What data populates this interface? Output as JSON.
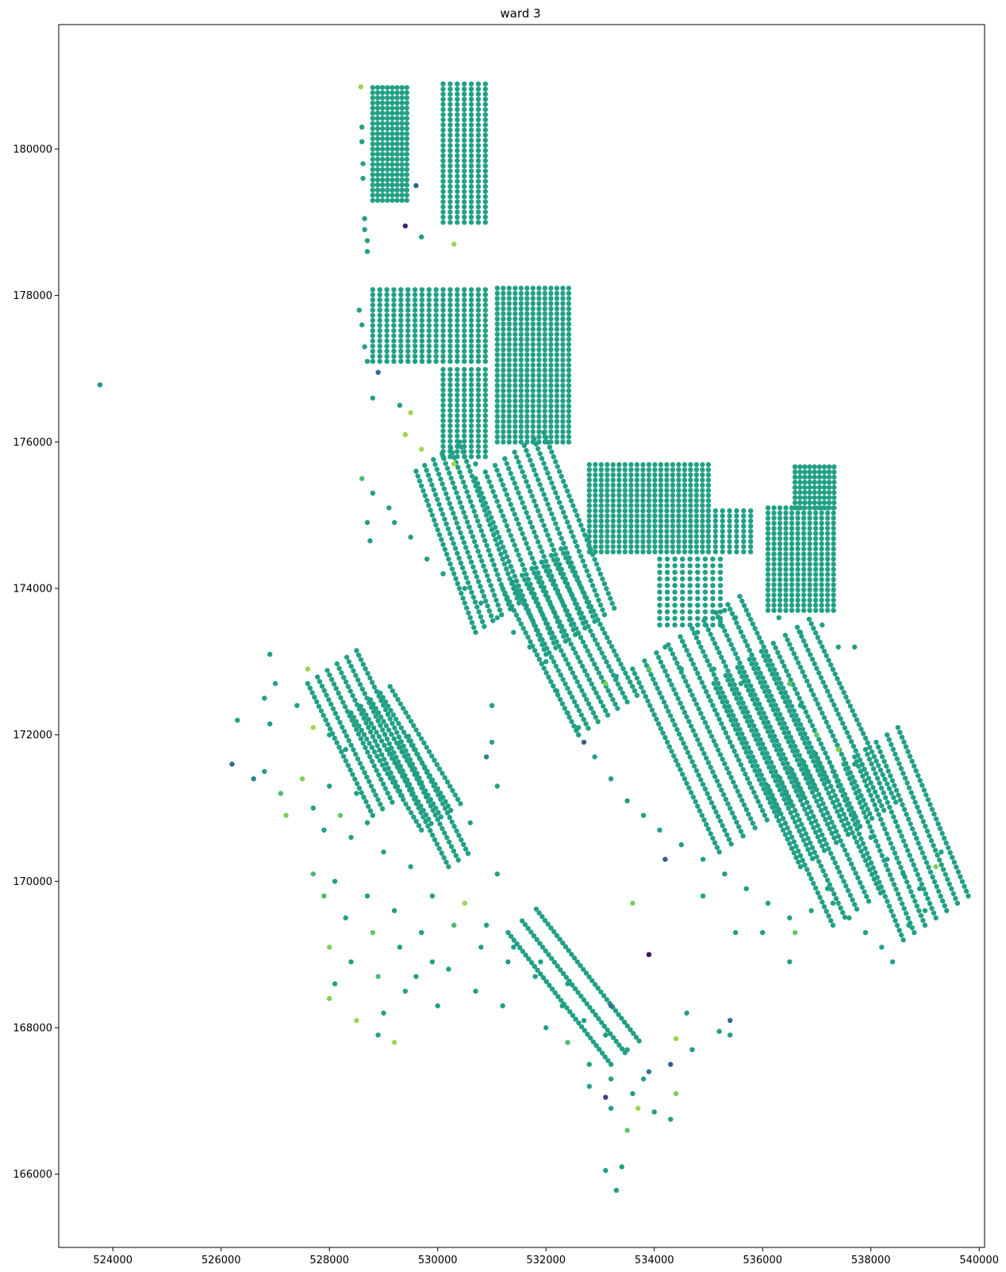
{
  "chart_data": {
    "type": "scatter",
    "title": "ward 3",
    "xlabel": "",
    "ylabel": "",
    "xlim": [
      523000,
      540100
    ],
    "ylim": [
      165000,
      181700
    ],
    "xticks": [
      524000,
      526000,
      528000,
      530000,
      532000,
      534000,
      536000,
      538000,
      540000
    ],
    "yticks": [
      166000,
      168000,
      170000,
      172000,
      174000,
      176000,
      178000,
      180000
    ],
    "xtick_labels": [
      "524000",
      "526000",
      "528000",
      "530000",
      "532000",
      "534000",
      "536000",
      "538000",
      "540000"
    ],
    "ytick_labels": [
      "166000",
      "168000",
      "170000",
      "172000",
      "174000",
      "176000",
      "178000",
      "180000"
    ],
    "grid": false,
    "legend": "none",
    "colormap": "viridis",
    "colors": {
      "frame": "#000000",
      "background": "#ffffff",
      "dominant_point": "#21a085"
    },
    "note_points": "Each point: [x, y, color_value in 0..1 viridis scale]",
    "points": [
      [
        523760,
        176780,
        0.55
      ],
      [
        528580,
        180850,
        0.85
      ],
      [
        528600,
        180300,
        0.6
      ],
      [
        528600,
        180100,
        0.6
      ],
      [
        528620,
        179800,
        0.6
      ],
      [
        528620,
        179600,
        0.6
      ],
      [
        528650,
        179050,
        0.6
      ],
      [
        528650,
        178900,
        0.6
      ],
      [
        528700,
        178750,
        0.6
      ],
      [
        528700,
        178600,
        0.6
      ],
      [
        528550,
        177800,
        0.6
      ],
      [
        528600,
        177600,
        0.6
      ],
      [
        528650,
        177300,
        0.6
      ],
      [
        528700,
        177100,
        0.6
      ],
      [
        529400,
        178950,
        0.1
      ],
      [
        529600,
        179500,
        0.3
      ],
      [
        529700,
        178800,
        0.6
      ],
      [
        530300,
        178700,
        0.85
      ],
      [
        528900,
        176950,
        0.35
      ],
      [
        528800,
        176600,
        0.6
      ],
      [
        529300,
        176500,
        0.6
      ],
      [
        529500,
        176400,
        0.85
      ],
      [
        528600,
        175500,
        0.7
      ],
      [
        528800,
        175300,
        0.6
      ],
      [
        529100,
        175100,
        0.6
      ],
      [
        528700,
        174900,
        0.6
      ],
      [
        528750,
        174650,
        0.6
      ],
      [
        529400,
        176100,
        0.85
      ],
      [
        529700,
        175900,
        0.85
      ],
      [
        530100,
        175800,
        0.6
      ],
      [
        530300,
        175700,
        0.85
      ],
      [
        530700,
        175700,
        0.6
      ],
      [
        529200,
        174900,
        0.6
      ],
      [
        529500,
        174700,
        0.6
      ],
      [
        529800,
        174400,
        0.6
      ],
      [
        530100,
        174200,
        0.6
      ],
      [
        530500,
        174000,
        0.6
      ],
      [
        530800,
        173800,
        0.6
      ],
      [
        531100,
        173600,
        0.6
      ],
      [
        531400,
        173400,
        0.6
      ],
      [
        531700,
        173200,
        0.6
      ],
      [
        532000,
        173000,
        0.6
      ],
      [
        532200,
        172600,
        0.6
      ],
      [
        532400,
        172300,
        0.6
      ],
      [
        532600,
        172100,
        0.6
      ],
      [
        532700,
        171900,
        0.3
      ],
      [
        532900,
        171700,
        0.6
      ],
      [
        533200,
        171400,
        0.6
      ],
      [
        533500,
        171100,
        0.6
      ],
      [
        533800,
        170900,
        0.6
      ],
      [
        534100,
        170700,
        0.6
      ],
      [
        534500,
        170500,
        0.6
      ],
      [
        534900,
        170300,
        0.6
      ],
      [
        535300,
        170100,
        0.6
      ],
      [
        535700,
        169900,
        0.6
      ],
      [
        536100,
        169700,
        0.6
      ],
      [
        536500,
        169500,
        0.6
      ],
      [
        533900,
        169000,
        0.05
      ],
      [
        533600,
        169700,
        0.8
      ],
      [
        534200,
        170300,
        0.3
      ],
      [
        534900,
        169800,
        0.6
      ],
      [
        535500,
        169300,
        0.6
      ],
      [
        526900,
        173100,
        0.6
      ],
      [
        527600,
        172900,
        0.85
      ],
      [
        527000,
        172700,
        0.6
      ],
      [
        526800,
        172500,
        0.6
      ],
      [
        527400,
        172400,
        0.6
      ],
      [
        526300,
        172200,
        0.6
      ],
      [
        526900,
        172150,
        0.6
      ],
      [
        527700,
        172100,
        0.85
      ],
      [
        528000,
        172000,
        0.6
      ],
      [
        528300,
        171800,
        0.6
      ],
      [
        526200,
        171600,
        0.35
      ],
      [
        526800,
        171500,
        0.6
      ],
      [
        527500,
        171400,
        0.8
      ],
      [
        528000,
        171300,
        0.6
      ],
      [
        528500,
        171200,
        0.6
      ],
      [
        526600,
        171400,
        0.45
      ],
      [
        527100,
        171200,
        0.7
      ],
      [
        527700,
        171000,
        0.6
      ],
      [
        528200,
        170900,
        0.75
      ],
      [
        528700,
        170800,
        0.6
      ],
      [
        527200,
        170900,
        0.8
      ],
      [
        527900,
        170700,
        0.6
      ],
      [
        528400,
        170600,
        0.6
      ],
      [
        529000,
        170400,
        0.6
      ],
      [
        529500,
        170200,
        0.6
      ],
      [
        527700,
        170100,
        0.7
      ],
      [
        528100,
        170000,
        0.6
      ],
      [
        528700,
        169800,
        0.6
      ],
      [
        529200,
        169600,
        0.6
      ],
      [
        529700,
        169300,
        0.6
      ],
      [
        527900,
        169800,
        0.7
      ],
      [
        528300,
        169500,
        0.6
      ],
      [
        528800,
        169300,
        0.75
      ],
      [
        529300,
        169100,
        0.6
      ],
      [
        529900,
        168900,
        0.6
      ],
      [
        528000,
        169100,
        0.8
      ],
      [
        528400,
        168900,
        0.6
      ],
      [
        528900,
        168700,
        0.7
      ],
      [
        529400,
        168500,
        0.6
      ],
      [
        530000,
        168300,
        0.6
      ],
      [
        528000,
        168400,
        0.8
      ],
      [
        528500,
        168100,
        0.85
      ],
      [
        529000,
        168200,
        0.6
      ],
      [
        528900,
        167900,
        0.6
      ],
      [
        529200,
        167800,
        0.85
      ],
      [
        528100,
        168600,
        0.6
      ],
      [
        529600,
        168700,
        0.6
      ],
      [
        530200,
        168800,
        0.6
      ],
      [
        530700,
        168500,
        0.6
      ],
      [
        531200,
        168300,
        0.6
      ],
      [
        530500,
        169700,
        0.85
      ],
      [
        530900,
        169400,
        0.6
      ],
      [
        531400,
        169100,
        0.6
      ],
      [
        531900,
        168900,
        0.6
      ],
      [
        532400,
        168600,
        0.6
      ],
      [
        529900,
        169800,
        0.6
      ],
      [
        530300,
        169400,
        0.7
      ],
      [
        530800,
        169100,
        0.6
      ],
      [
        531300,
        168900,
        0.6
      ],
      [
        531800,
        168700,
        0.6
      ],
      [
        530600,
        170800,
        0.6
      ],
      [
        531100,
        170100,
        0.6
      ],
      [
        531100,
        171300,
        0.6
      ],
      [
        530900,
        171700,
        0.45
      ],
      [
        531000,
        171900,
        0.6
      ],
      [
        531000,
        172400,
        0.6
      ],
      [
        532300,
        168300,
        0.6
      ],
      [
        532700,
        168100,
        0.6
      ],
      [
        533100,
        167900,
        0.6
      ],
      [
        533500,
        167700,
        0.6
      ],
      [
        532000,
        168000,
        0.6
      ],
      [
        532400,
        167800,
        0.7
      ],
      [
        532800,
        167500,
        0.6
      ],
      [
        533200,
        167300,
        0.6
      ],
      [
        533600,
        167100,
        0.6
      ],
      [
        532800,
        167200,
        0.6
      ],
      [
        533200,
        166900,
        0.6
      ],
      [
        533700,
        166900,
        0.85
      ],
      [
        534000,
        166850,
        0.6
      ],
      [
        534300,
        166750,
        0.6
      ],
      [
        533100,
        166050,
        0.6
      ],
      [
        533400,
        166100,
        0.6
      ],
      [
        533300,
        165780,
        0.6
      ],
      [
        533500,
        166600,
        0.75
      ],
      [
        533800,
        167300,
        0.6
      ],
      [
        534400,
        167100,
        0.8
      ],
      [
        534300,
        167500,
        0.3
      ],
      [
        534600,
        168200,
        0.6
      ],
      [
        534700,
        167700,
        0.6
      ],
      [
        535200,
        167950,
        0.6
      ],
      [
        535400,
        168100,
        0.35
      ],
      [
        535400,
        167900,
        0.6
      ],
      [
        534400,
        167850,
        0.85
      ],
      [
        533900,
        167400,
        0.4
      ],
      [
        533200,
        168300,
        0.35
      ],
      [
        533100,
        167050,
        0.2
      ],
      [
        536500,
        172700,
        0.75
      ],
      [
        536700,
        172400,
        0.6
      ],
      [
        537000,
        172000,
        0.75
      ],
      [
        537400,
        171800,
        0.8
      ],
      [
        537700,
        171600,
        0.6
      ],
      [
        537400,
        171300,
        0.6
      ],
      [
        537700,
        170900,
        0.6
      ],
      [
        538000,
        170600,
        0.6
      ],
      [
        538300,
        170300,
        0.6
      ],
      [
        538600,
        170100,
        0.6
      ],
      [
        538900,
        169900,
        0.6
      ],
      [
        539200,
        170200,
        0.8
      ],
      [
        539300,
        170400,
        0.6
      ],
      [
        539000,
        169600,
        0.6
      ],
      [
        538700,
        169400,
        0.6
      ],
      [
        537300,
        169700,
        0.6
      ],
      [
        537600,
        169500,
        0.6
      ],
      [
        537900,
        169300,
        0.6
      ],
      [
        538200,
        169100,
        0.6
      ],
      [
        538400,
        168900,
        0.6
      ],
      [
        536600,
        169300,
        0.75
      ],
      [
        536900,
        169600,
        0.6
      ],
      [
        537200,
        169900,
        0.6
      ],
      [
        536500,
        168900,
        0.6
      ],
      [
        536000,
        169300,
        0.6
      ],
      [
        536300,
        173600,
        0.6
      ],
      [
        536700,
        173400,
        0.6
      ],
      [
        537100,
        173500,
        0.6
      ],
      [
        537400,
        173200,
        0.6
      ],
      [
        537700,
        173200,
        0.6
      ],
      [
        535300,
        173700,
        0.6
      ],
      [
        535500,
        173600,
        0.6
      ],
      [
        534800,
        173400,
        0.6
      ],
      [
        534200,
        173200,
        0.6
      ],
      [
        533900,
        172900,
        0.75
      ],
      [
        533300,
        172800,
        0.6
      ],
      [
        533100,
        172700,
        0.8
      ],
      [
        534500,
        172900,
        0.6
      ],
      [
        535100,
        172900,
        0.6
      ],
      [
        535600,
        172700,
        0.6
      ]
    ],
    "grids": [
      {
        "x0": 528800,
        "x1": 529500,
        "y0": 179300,
        "y1": 180900,
        "dx": 90,
        "dy": 70,
        "c": 0.6
      },
      {
        "x0": 530100,
        "x1": 530900,
        "y0": 179000,
        "y1": 180900,
        "dx": 130,
        "dy": 70,
        "c": 0.6
      },
      {
        "x0": 528800,
        "x1": 530900,
        "y0": 177100,
        "y1": 178100,
        "dx": 130,
        "dy": 70,
        "c": 0.6
      },
      {
        "x0": 530100,
        "x1": 530900,
        "y0": 175800,
        "y1": 177000,
        "dx": 130,
        "dy": 70,
        "c": 0.6
      },
      {
        "x0": 531100,
        "x1": 532500,
        "y0": 176000,
        "y1": 178100,
        "dx": 110,
        "dy": 70,
        "c": 0.6
      },
      {
        "x0": 532800,
        "x1": 535000,
        "y0": 174500,
        "y1": 175700,
        "dx": 110,
        "dy": 70,
        "c": 0.6
      },
      {
        "x0": 535000,
        "x1": 535900,
        "y0": 174500,
        "y1": 175100,
        "dx": 130,
        "dy": 70,
        "c": 0.6
      },
      {
        "x0": 536600,
        "x1": 537400,
        "y0": 175100,
        "y1": 175700,
        "dx": 90,
        "dy": 70,
        "c": 0.6
      },
      {
        "x0": 536100,
        "x1": 537400,
        "y0": 173700,
        "y1": 175100,
        "dx": 110,
        "dy": 70,
        "c": 0.6
      },
      {
        "x0": 534100,
        "x1": 535300,
        "y0": 173500,
        "y1": 174400,
        "dx": 140,
        "dy": 90,
        "c": 0.6
      }
    ],
    "diagonals": [
      {
        "x0": 529600,
        "y0": 175600,
        "x1": 530700,
        "y1": 173400,
        "n": 6,
        "ox": 160,
        "oy": 80,
        "c": 0.6
      },
      {
        "x0": 530700,
        "y0": 175500,
        "x1": 532000,
        "y1": 173100,
        "n": 8,
        "ox": 180,
        "oy": 90,
        "c": 0.6
      },
      {
        "x0": 531200,
        "y0": 174000,
        "x1": 532600,
        "y1": 172000,
        "n": 7,
        "ox": 180,
        "oy": 90,
        "c": 0.6
      },
      {
        "x0": 533600,
        "y0": 172900,
        "x1": 535200,
        "y1": 170400,
        "n": 10,
        "ox": 220,
        "oy": 110,
        "c": 0.6
      },
      {
        "x0": 535100,
        "y0": 172700,
        "x1": 536700,
        "y1": 170200,
        "n": 9,
        "ox": 220,
        "oy": 110,
        "c": 0.6
      },
      {
        "x0": 536100,
        "y0": 171300,
        "x1": 537300,
        "y1": 169400,
        "n": 5,
        "ox": 220,
        "oy": 110,
        "c": 0.6
      },
      {
        "x0": 537300,
        "y0": 171500,
        "x1": 538600,
        "y1": 169200,
        "n": 7,
        "ox": 200,
        "oy": 100,
        "c": 0.6
      },
      {
        "x0": 527600,
        "y0": 172700,
        "x1": 528800,
        "y1": 170900,
        "n": 6,
        "ox": 180,
        "oy": 90,
        "c": 0.6
      },
      {
        "x0": 528400,
        "y0": 172300,
        "x1": 529700,
        "y1": 170700,
        "n": 5,
        "ox": 180,
        "oy": 90,
        "c": 0.6
      },
      {
        "x0": 529100,
        "y0": 171800,
        "x1": 530200,
        "y1": 170200,
        "n": 3,
        "ox": 180,
        "oy": 90,
        "c": 0.6
      },
      {
        "x0": 531300,
        "y0": 169300,
        "x1": 533200,
        "y1": 167500,
        "n": 3,
        "ox": 260,
        "oy": 160,
        "c": 0.6
      }
    ]
  }
}
